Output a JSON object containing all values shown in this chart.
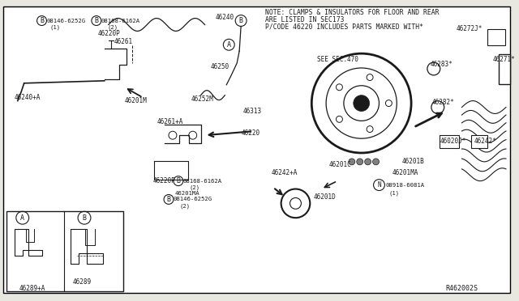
{
  "bg_color": "#e8e8e0",
  "diagram_bg": "#ffffff",
  "line_color": "#1a1a1a",
  "note_lines": [
    "NOTE: CLAMPS & INSULATORS FOR FLOOR AND REAR",
    "ARE LISTED IN SEC173",
    "P/CODE 46220 INCLUDES PARTS MARKED WITH*"
  ],
  "ref_code": "R462002S"
}
